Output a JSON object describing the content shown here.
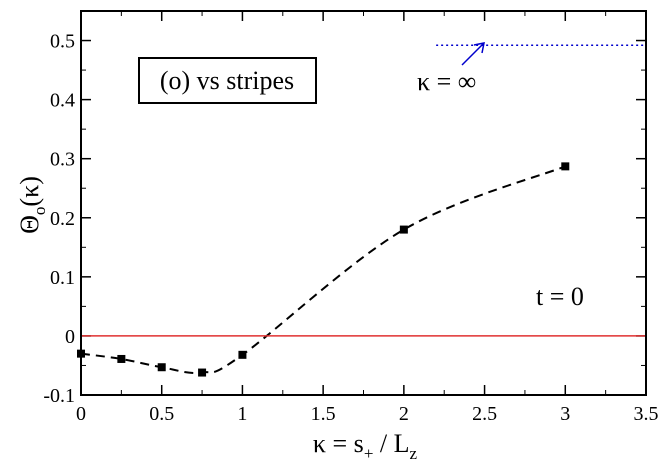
{
  "chart_data": {
    "type": "line",
    "xlim": [
      0,
      3.5
    ],
    "ylim": [
      -0.1,
      0.55
    ],
    "x_ticks": [
      0,
      0.5,
      1,
      1.5,
      2,
      2.5,
      3,
      3.5
    ],
    "x_tick_labels": [
      "0",
      "0.5",
      "1",
      "1.5",
      "2",
      "2.5",
      "3",
      "3.5"
    ],
    "y_ticks": [
      -0.1,
      0,
      0.1,
      0.2,
      0.3,
      0.4,
      0.5
    ],
    "y_tick_labels": [
      "-0.1",
      "0",
      "0.1",
      "0.2",
      "0.3",
      "0.4",
      "0.5"
    ],
    "xlabel": {
      "base": "κ = s",
      "sub1": "+",
      "mid": " / L",
      "sub2": "z"
    },
    "ylabel": {
      "base": "Θ",
      "sub": "o",
      "tail": "(κ)"
    },
    "grid": false,
    "series": [
      {
        "x": [
          0,
          0.25,
          0.5,
          0.75,
          1,
          2,
          3
        ],
        "y": [
          -0.03,
          -0.039,
          -0.053,
          -0.062,
          -0.032,
          0.18,
          0.287
        ],
        "color": "#000000",
        "line": "dashed",
        "marker": "square"
      },
      {
        "x": [
          2.2,
          3.5
        ],
        "y": [
          0.492,
          0.492
        ],
        "color": "#0000cc",
        "line": "dotted"
      },
      {
        "x": [
          0,
          3.5
        ],
        "y": [
          0,
          0
        ],
        "color": "#e03030",
        "line": "solid"
      }
    ],
    "annotations": {
      "box_label": "(o) vs stripes",
      "kappa_inf": "κ = ∞",
      "t_label": "t = 0"
    }
  }
}
